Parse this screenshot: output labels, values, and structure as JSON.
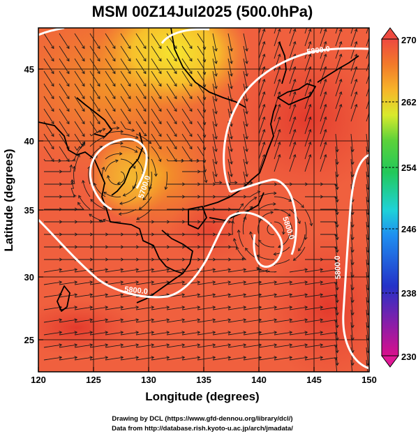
{
  "title": "MSM 00Z14Jul2025 (500.0hPa)",
  "xlabel": "Longitude (degrees)",
  "ylabel": "Latitude  (degrees)",
  "x_ticks": [
    "120",
    "125",
    "130",
    "135",
    "140",
    "145",
    "150"
  ],
  "y_ticks": [
    "25",
    "30",
    "35",
    "40",
    "45"
  ],
  "colorbar_ticks": [
    "270",
    "262",
    "254",
    "246",
    "238",
    "230"
  ],
  "contour_labels": [
    "5800.0",
    "5700.0",
    "5800.0",
    "5800.0",
    "5800.0",
    "5800.0"
  ],
  "credit_line1": "Drawing by DCL (https://www.gfd-dennou.org/library/dcl/)",
  "credit_line2": "Data from http://database.rish.kyoto-u.ac.jp/arch/jmadata/",
  "map": {
    "lon_range": [
      120,
      150
    ],
    "lat_range": [
      22.5,
      47.5
    ],
    "colorbar_range": [
      230,
      270
    ],
    "field": "temperature (K)",
    "contour_field": "geopotential height (m)",
    "vectors": "wind streamlines",
    "colors": {
      "warm_red": "#f05a4a",
      "deep_red": "#e8402e",
      "orange": "#f58a22",
      "yellow": "#f5e030",
      "contour": "#ffffff",
      "coast": "#000000"
    }
  }
}
